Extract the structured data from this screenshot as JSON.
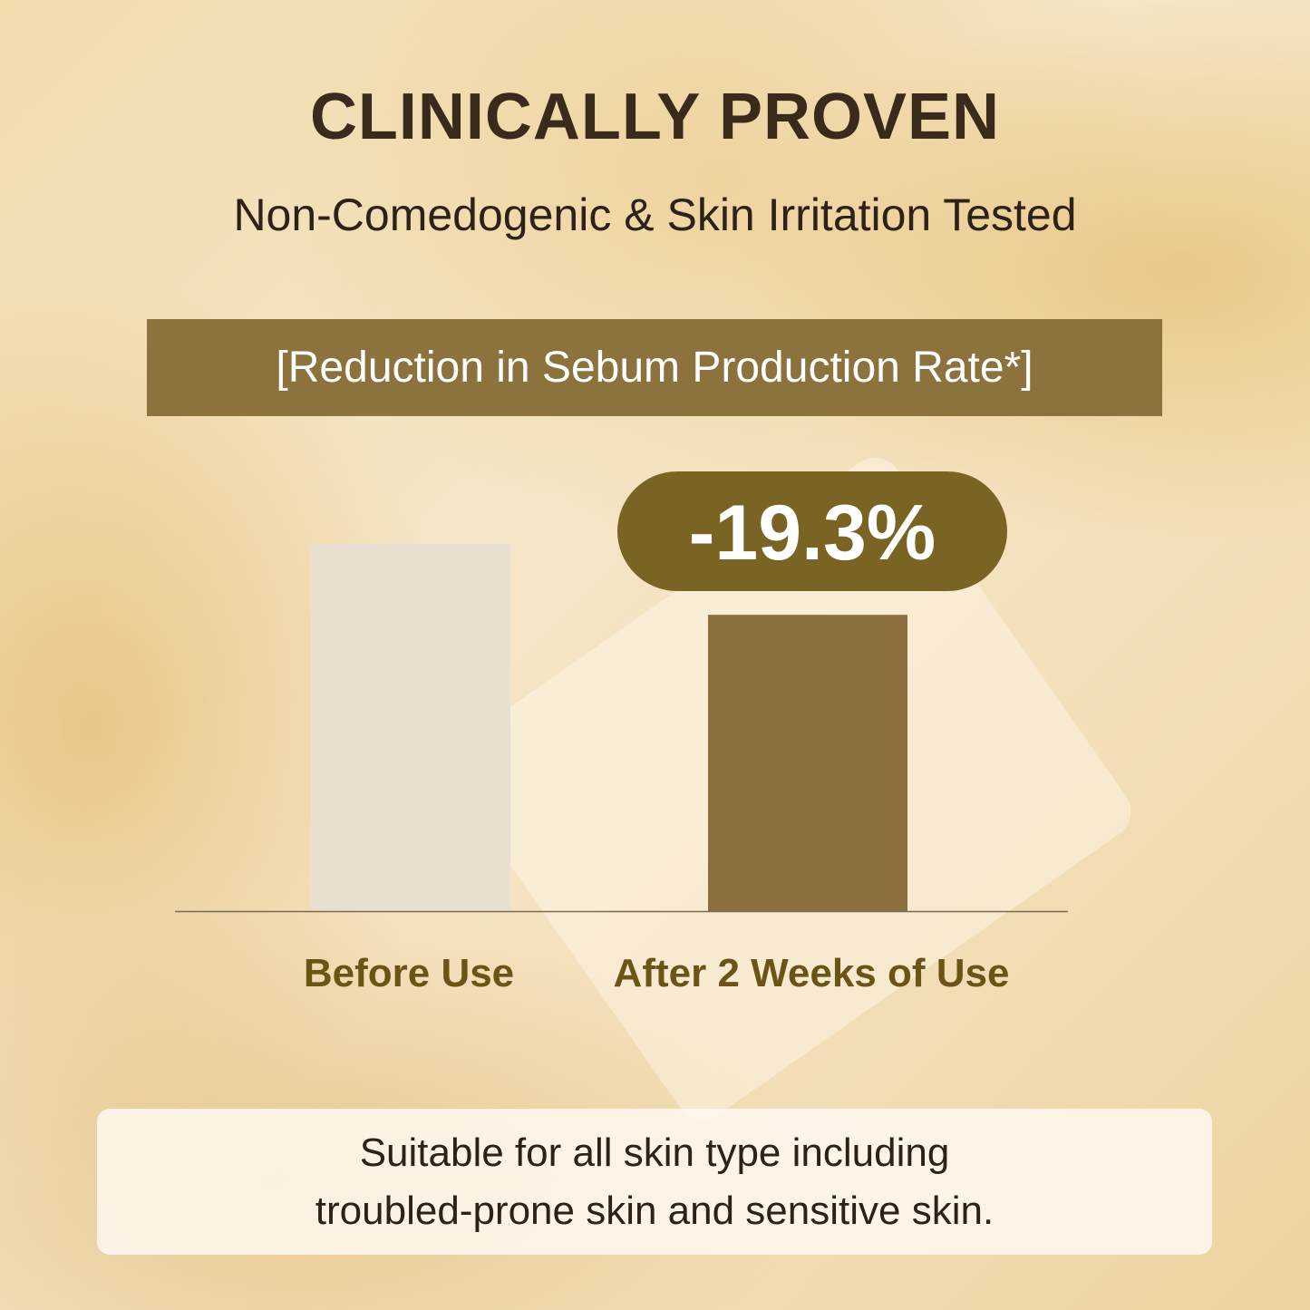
{
  "header": {
    "title": "CLINICALLY PROVEN",
    "subtitle": "Non-Comedogenic & Skin Irritation Tested"
  },
  "chart_data": {
    "type": "bar",
    "title": "[Reduction in Sebum Production Rate*]",
    "categories": [
      "Before Use",
      "After 2 Weeks of Use"
    ],
    "values": [
      100,
      80.7
    ],
    "colors": [
      "#e8e0d0",
      "#8b6f3e"
    ],
    "annotation": "-19.3%",
    "annotation_color": "#7a6424",
    "grid": false,
    "ylim": [
      0,
      100
    ]
  },
  "footer": {
    "lines": [
      "Suitable for all skin type including",
      "troubled-prone skin and sensitive skin."
    ]
  }
}
